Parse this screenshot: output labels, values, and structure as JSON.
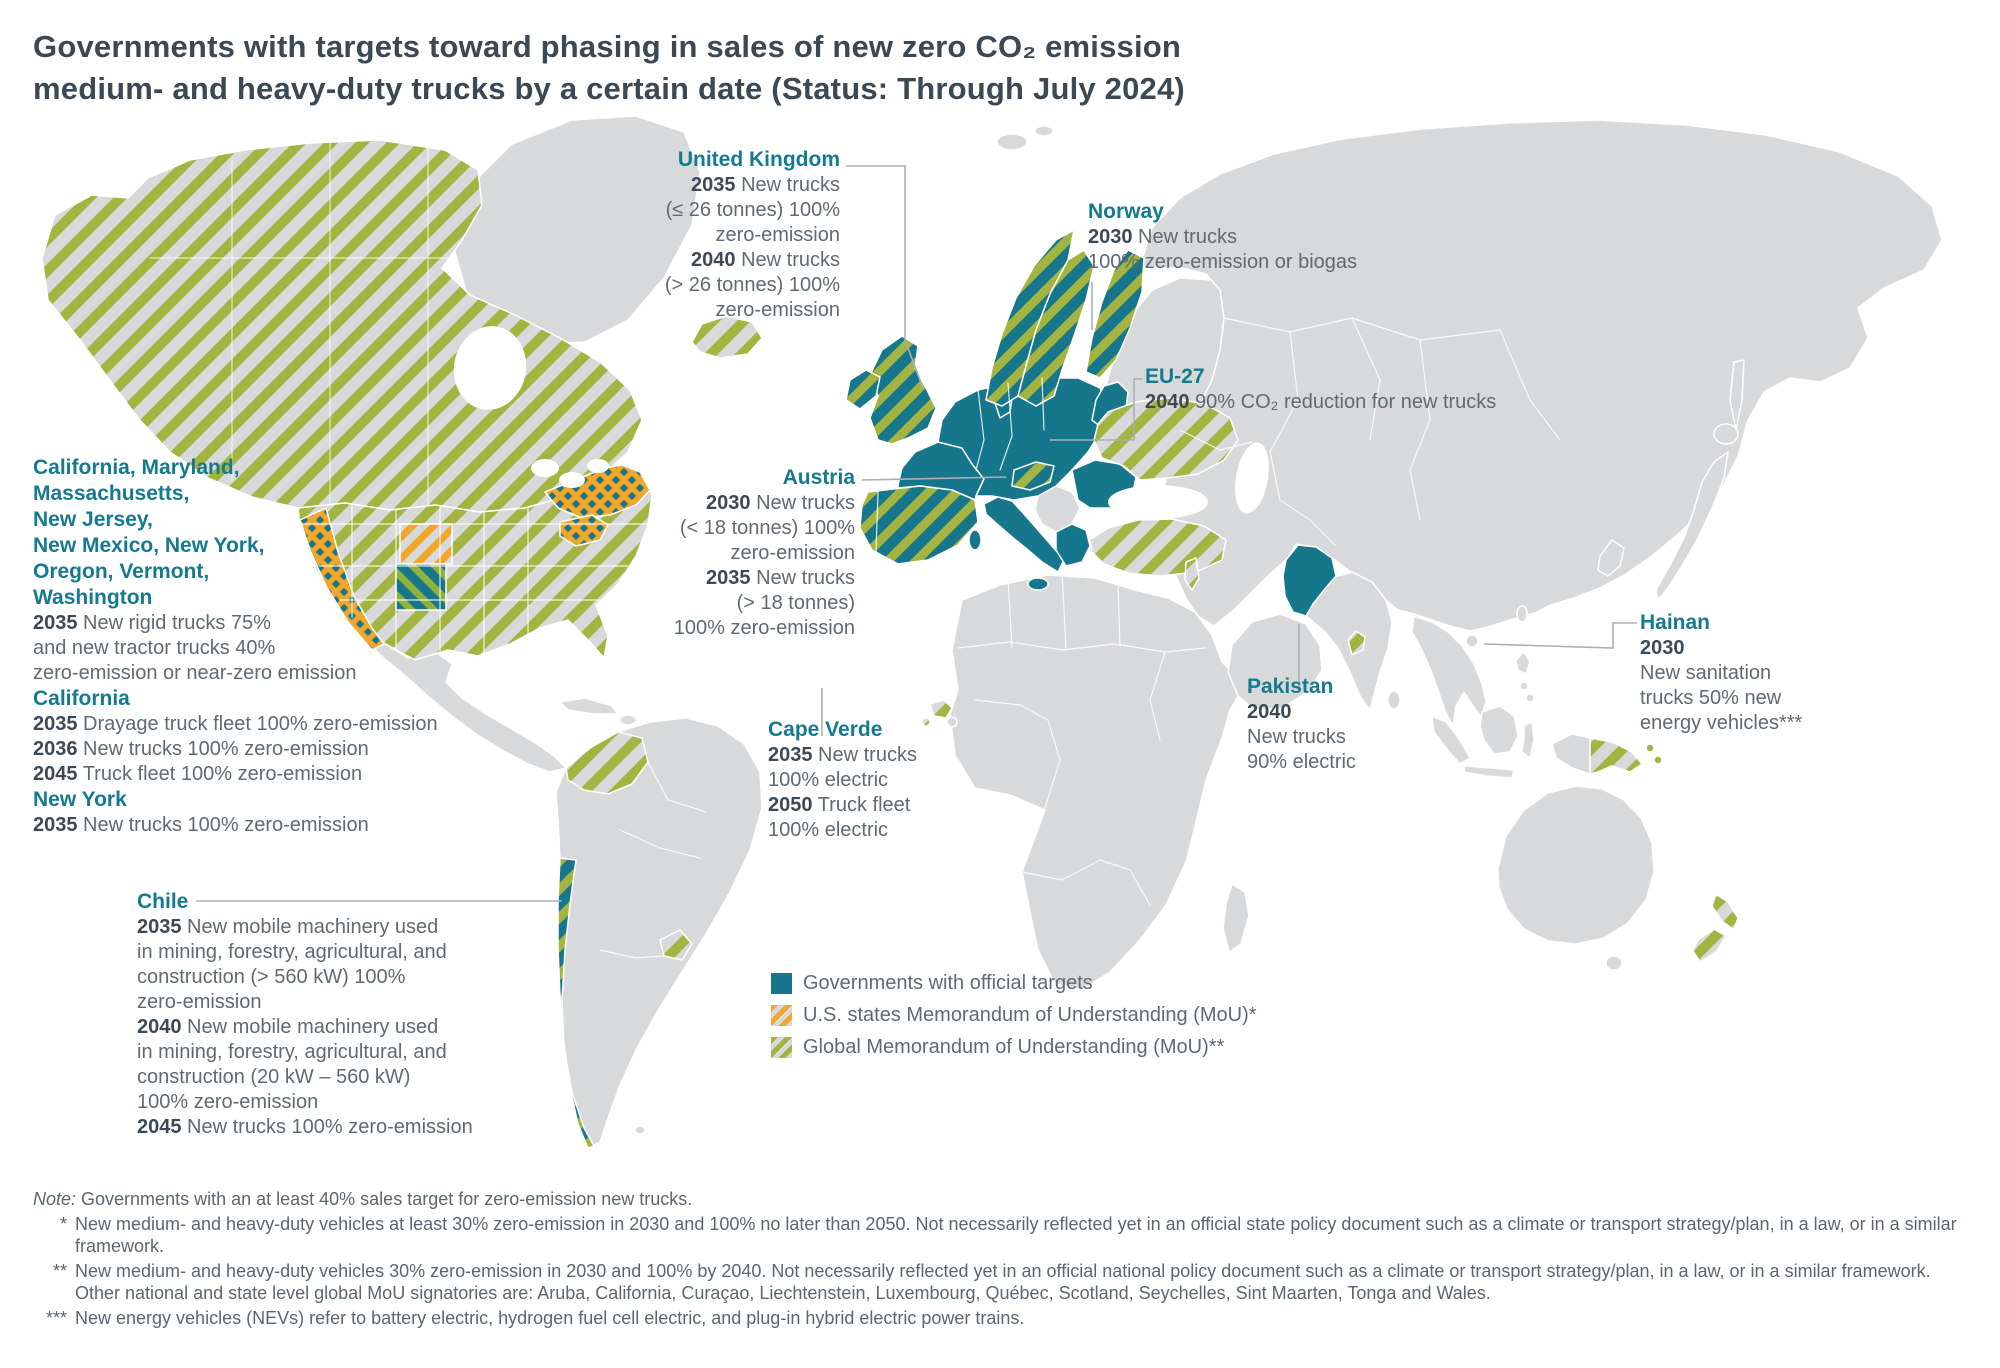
{
  "title": {
    "line1": "Governments with targets toward phasing in sales of new zero CO₂ emission",
    "line2": "medium- and heavy-duty trucks by a certain date (Status: Through July 2024)"
  },
  "colors": {
    "teal_official": "#16768b",
    "green_global_mou": "#a4b440",
    "orange_us_mou": "#f2a62a",
    "land_gray": "#d8d9da",
    "heading_text": "#3b4954",
    "body_text": "#5f6a73",
    "region_label_text": "#157a90"
  },
  "annotations": {
    "uk": {
      "name": "United Kingdom",
      "lines": [
        {
          "bold": "2035",
          "text": " New trucks"
        },
        {
          "text": "(≤ 26 tonnes) 100%"
        },
        {
          "text": "zero-emission"
        },
        {
          "bold": "2040",
          "text": " New trucks"
        },
        {
          "text": "(> 26 tonnes) 100%"
        },
        {
          "text": "zero-emission"
        }
      ]
    },
    "norway": {
      "name": "Norway",
      "lines": [
        {
          "bold": "2030",
          "text": " New trucks"
        },
        {
          "text": "100% zero-emission or biogas"
        }
      ]
    },
    "eu27": {
      "name": "EU-27",
      "lines": [
        {
          "bold": "2040",
          "text": " 90% CO₂ reduction for new trucks"
        }
      ]
    },
    "austria": {
      "name": "Austria",
      "lines": [
        {
          "bold": "2030",
          "text": " New trucks"
        },
        {
          "text": "(< 18 tonnes) 100%"
        },
        {
          "text": "zero-emission"
        },
        {
          "bold": "2035",
          "text": " New trucks"
        },
        {
          "text": "(> 18 tonnes)"
        },
        {
          "text": "100% zero-emission"
        }
      ]
    },
    "us": {
      "lines": [
        {
          "head": "California, Maryland,"
        },
        {
          "head": "Massachusetts,"
        },
        {
          "head": "New Jersey,"
        },
        {
          "head": "New Mexico, New York,"
        },
        {
          "head": "Oregon, Vermont,"
        },
        {
          "head": "Washington"
        },
        {
          "bold": "2035",
          "text": " New rigid trucks 75%"
        },
        {
          "text": "and new tractor trucks 40%"
        },
        {
          "text": "zero-emission or near-zero emission"
        },
        {
          "head": "California"
        },
        {
          "bold": "2035",
          "text": " Drayage truck fleet 100% zero-emission"
        },
        {
          "bold": "2036",
          "text": " New trucks 100% zero-emission"
        },
        {
          "bold": "2045",
          "text": " Truck fleet 100% zero-emission"
        },
        {
          "head": "New York"
        },
        {
          "bold": "2035",
          "text": " New trucks 100% zero-emission"
        }
      ]
    },
    "chile": {
      "name": "Chile",
      "lines": [
        {
          "bold": "2035",
          "text": " New mobile machinery used"
        },
        {
          "text": "in mining, forestry, agricultural, and"
        },
        {
          "text": "construction (> 560 kW) 100%"
        },
        {
          "text": "zero-emission"
        },
        {
          "bold": "2040",
          "text": " New mobile machinery used"
        },
        {
          "text": "in mining, forestry, agricultural, and"
        },
        {
          "text": "construction (20 kW – 560 kW)"
        },
        {
          "text": "100% zero-emission"
        },
        {
          "bold": "2045",
          "text": " New trucks 100% zero-emission"
        }
      ]
    },
    "capeverde": {
      "name": "Cape Verde",
      "lines": [
        {
          "bold": "2035",
          "text": " New trucks"
        },
        {
          "text": "100% electric"
        },
        {
          "bold": "2050",
          "text": " Truck fleet"
        },
        {
          "text": "100% electric"
        }
      ]
    },
    "pakistan": {
      "name": "Pakistan",
      "lines": [
        {
          "bold": "2040",
          "text": ""
        },
        {
          "text": "New trucks"
        },
        {
          "text": "90% electric"
        }
      ]
    },
    "hainan": {
      "name": "Hainan",
      "lines": [
        {
          "bold": "2030",
          "text": ""
        },
        {
          "text": "New sanitation"
        },
        {
          "text": "trucks 50% new"
        },
        {
          "text": "energy vehicles***"
        }
      ]
    }
  },
  "legend": {
    "items": [
      {
        "label": "Governments with official targets",
        "swatch": "official-targets"
      },
      {
        "label": "U.S. states Memorandum of Understanding (MoU)*",
        "swatch": "us-states-mou"
      },
      {
        "label": "Global Memorandum of Understanding (MoU)**",
        "swatch": "global-mou"
      }
    ]
  },
  "notes": {
    "intro_label": "Note:",
    "intro_text": " Governments with an at least 40% sales target for zero-emission new trucks.",
    "items": [
      {
        "marker": "*",
        "text": "New medium- and heavy-duty vehicles at least 30% zero-emission in 2030 and 100% no later than 2050. Not necessarily reflected yet in an official state policy document such as a climate or transport strategy/plan, in a law, or in a similar framework."
      },
      {
        "marker": "**",
        "text": "New medium- and heavy-duty vehicles 30% zero-emission in 2030 and 100% by 2040. Not necessarily reflected yet in an official national policy document such as a climate or transport strategy/plan, in a law, or in a similar framework. Other national and state level global MoU signatories are: Aruba, California, Curaçao, Liechtenstein, Luxembourg, Québec, Scotland, Seychelles, Sint Maarten, Tonga and Wales."
      },
      {
        "marker": "***",
        "text": "New energy vehicles (NEVs) refer to battery electric, hydrogen fuel cell electric, and plug-in hybrid electric power trains."
      }
    ]
  },
  "map": {
    "regions": [
      {
        "name": "Canada",
        "status": "Global MoU"
      },
      {
        "name": "United States",
        "status": "Global MoU"
      },
      {
        "name": "Washington / Oregon / California",
        "status": "Official target + U.S. states MoU"
      },
      {
        "name": "Colorado",
        "status": "U.S. states MoU"
      },
      {
        "name": "New Mexico",
        "status": "Official target + Global MoU"
      },
      {
        "name": "Northeast U.S. states",
        "status": "Official target + U.S. states MoU"
      },
      {
        "name": "Chile",
        "status": "Official target + Global MoU"
      },
      {
        "name": "Colombia",
        "status": "Global MoU"
      },
      {
        "name": "EU-27",
        "status": "Official target"
      },
      {
        "name": "United Kingdom",
        "status": "Official target + Global MoU"
      },
      {
        "name": "Ireland",
        "status": "Official target + Global MoU"
      },
      {
        "name": "Norway",
        "status": "Official target + Global MoU"
      },
      {
        "name": "Sweden",
        "status": "Official target + Global MoU"
      },
      {
        "name": "Finland",
        "status": "Official target + Global MoU"
      },
      {
        "name": "Iceland",
        "status": "Global MoU"
      },
      {
        "name": "Spain",
        "status": "Official target + Global MoU"
      },
      {
        "name": "Austria",
        "status": "Official target + Global MoU"
      },
      {
        "name": "Ukraine",
        "status": "Global MoU"
      },
      {
        "name": "Turkey",
        "status": "Global MoU"
      },
      {
        "name": "Israel",
        "status": "Global MoU"
      },
      {
        "name": "Cape Verde",
        "status": "Global MoU"
      },
      {
        "name": "Pakistan",
        "status": "Official target"
      },
      {
        "name": "Telangana (India)",
        "status": "Global MoU"
      },
      {
        "name": "Hainan (China)",
        "status": "Official target"
      },
      {
        "name": "Papua New Guinea",
        "status": "Global MoU"
      },
      {
        "name": "New Zealand",
        "status": "Global MoU"
      }
    ]
  }
}
